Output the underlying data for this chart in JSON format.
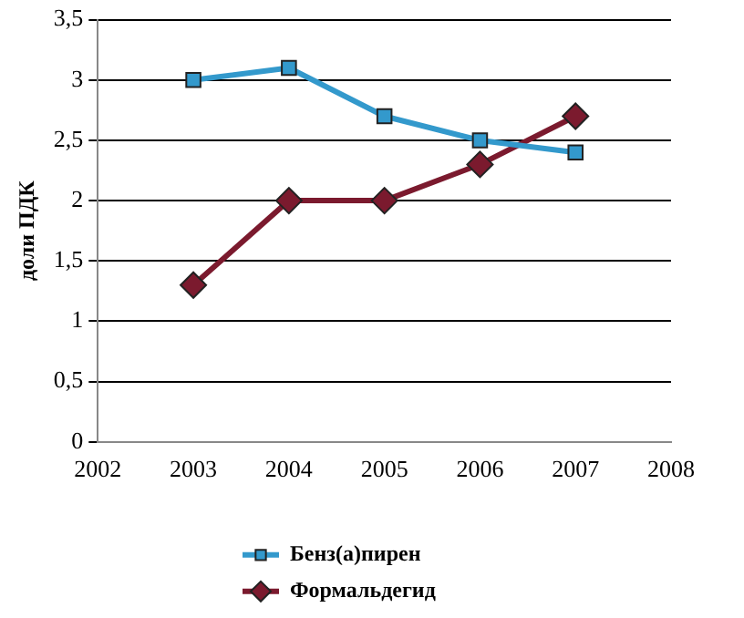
{
  "chart_data": {
    "type": "line",
    "ylabel": "доли ПДК",
    "x": [
      2003,
      2004,
      2005,
      2006,
      2007
    ],
    "xlim": [
      2002,
      2008
    ],
    "xticks": [
      2002,
      2003,
      2004,
      2005,
      2006,
      2007,
      2008
    ],
    "ylim": [
      0,
      3.5
    ],
    "yticks": [
      0,
      {
        "value": 0.5,
        "label": "0,5"
      },
      1,
      {
        "value": 1.5,
        "label": "1,5"
      },
      2,
      {
        "value": 2.5,
        "label": "2,5"
      },
      3,
      {
        "value": 3.5,
        "label": "3,5"
      }
    ],
    "grid": "y",
    "legend": "bottom",
    "line_style": "solid",
    "series": [
      {
        "name": "Бенз(а)пирен",
        "color": "#3399cc",
        "marker": "square",
        "values": [
          3.0,
          3.1,
          2.7,
          2.5,
          2.4
        ]
      },
      {
        "name": "Формальдегид",
        "color": "#7b1a2e",
        "marker": "diamond",
        "values": [
          1.3,
          2.0,
          2.0,
          2.3,
          2.7
        ]
      }
    ]
  }
}
